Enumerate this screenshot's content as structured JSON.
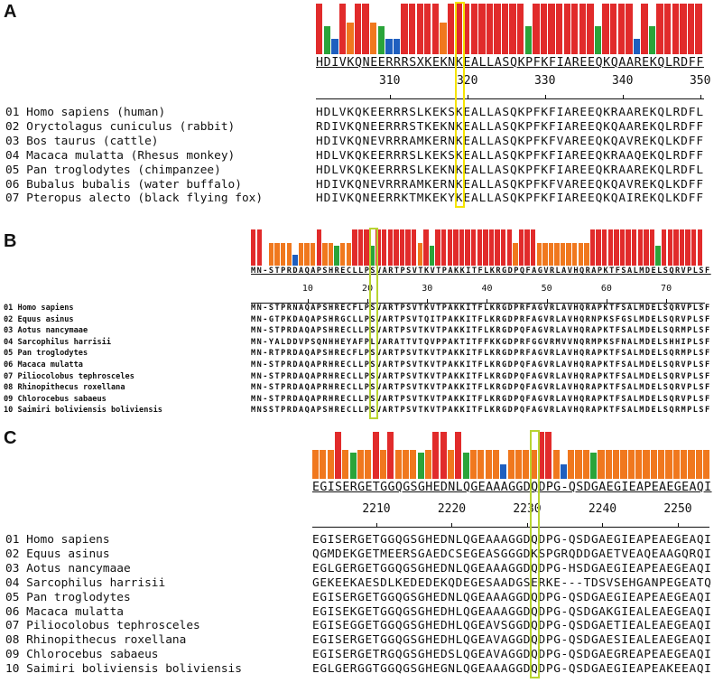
{
  "panels": [
    {
      "label": "A",
      "highlight_color": "#f5e400",
      "consensus": "HDIVKQNEERRRSXKEKNKEALLASQKPFKFIAREEQKQAAREKQLRDFF",
      "ruler_start": 301,
      "ruler_ticks": [
        "310",
        "320",
        "330",
        "340",
        "350"
      ],
      "highlight_col": 18,
      "bar_colors": "RGBRORROGBBRRRRRORRRRRRRRRRGRRRRRRRRGRRRRBRGRRRRRR",
      "species": [
        "01 Homo sapiens (human)",
        "02 Oryctolagus cuniculus (rabbit)",
        "03 Bos taurus (cattle)",
        "04 Macaca mulatta (Rhesus monkey)",
        "05 Pan troglodytes (chimpanzee)",
        "06 Bubalus bubalis (water buffalo)",
        "07 Pteropus alecto (black flying fox)"
      ],
      "sequences": [
        "HDLVKQKEERRRSLKEKSKEALLASQKPFKFIAREEQKRAAREKQLRDFL",
        "RDIVKQNEERRRSTKEKNKEALLASQKPFKFIAREEQKQAAREKQLRDFF",
        "HDIVKQNEVRRRAMKERNKEALLASQKPFKFVAREEQKQAVREKQLKDFF",
        "HDLVKQKEERRRSLKEKSKEALLASQKPFKFIAREEQKRAAQEKQLRDFF",
        "HDLVKQKEERRRSLKEKNKEALLASQKPFKFIAREEQKRAAREKQLRDFL",
        "HDIVKQNEVRRRAMKERNKEALLASQKPFKFVAREEQKQAVREKQLKDFF",
        "HDIVKQNEERRKTMKEKYKEALLASQKPFKFIAREEQKQAIREKQLKDFF"
      ]
    },
    {
      "label": "B",
      "highlight_color": "#b8d432",
      "consensus": "MN-STPRDAQAPSHRECLLPSVARTPSVTKVTPAKKITFLKRGDPQFAGVRLAVHQRAPKTFSALMDELSQRVPLSF",
      "ruler_start": 1,
      "ruler_ticks": [
        "10",
        "20",
        "30",
        "40",
        "50",
        "60",
        "70"
      ],
      "highlight_col": 20,
      "bar_colors": "RRWOOOOBOOOROOGOORRRGRRRRRRRORGRRRRRRRRRRRRRORRROOOOOOOOORRRRRRRRRRRGRRRRRRR",
      "species": [
        "01 Homo sapiens",
        "02 Equus asinus",
        "03 Aotus nancymaae",
        "04 Sarcophilus harrisii",
        "05 Pan troglodytes",
        "06 Macaca mulatta",
        "07 Piliocolobus tephrosceles",
        "08 Rhinopithecus roxellana",
        "09 Chlorocebus sabaeus",
        "10 Saimiri boliviensis boliviensis"
      ],
      "sequences": [
        "MN-STPRNAQAPSHRECFLPSVARTPSVTKVTPAKKITFLKRGDPRFAGVRLAVHQRAPKTFSALMDELSQRVPLSF",
        "MN-GTPKDAQAPSHRGCLLPSVARTPSVTQITPAKKITFLKRGDPRFAGVRLAVHQRNPKSFGSLMDELSQRVPLSF",
        "MN-STPRDAQAPSHRECLLPSVARTPSVTKVTPAKKITFLKRGDPQFAGVRLAVHQRAPKTFSALMDELSQRMPLSF",
        "MN-YALDDVPSQNHHEYAFPLVARATTVTQVPPAKTITFFKKGDPRFGGVRMVVNQRMPKSFNALMDELSHHIPLSF",
        "MN-RTPRDAQAPSHRECFLPSVARTPSVTKVTPAKKITFLKRGDPRFAGVRLAVHQRAPKTFSALMDELSQRMPLSF",
        "MN-STPRDAQAPRHRECLLPSVARTPSVTKVTPAKKITFLKRGDPQFAGVRLAVHQRAPKTFSALMDELSQRVPLSF",
        "MN-STPRDAQAPRHRECLLPSVARTPSVTKVTPAKKITFLKRGDPQFAGVRLAVHQRAPKTFSALMDELSQRVPLSF",
        "MN-STPRDAQAPRHRECLLPSVARTPSVTKVTPAKKITFLKRGDPQFAGVRLAVHQRAPKTFSALMDELSQRVPLSF",
        "MN-STPRDAQAPRHRECLLPSVARTPSVTKVTPAKKITFLKRGDPQFAGVRLAVHQRAPKTFSALMDELSQRVPLSF",
        "MNSSTPRDAQAPSHRECLLPSVARTPSVTKVTPAKKITFLKRGDPQFAGVRLAVHQRAPKTFSALMDELSQRMPLSF"
      ]
    },
    {
      "label": "C",
      "highlight_color": "#b8d432",
      "consensus": "EGISERGETGGQGSGHEDNLQGEAAAGGDQDPG-QSDGAEGIEAPEAEGEAQI",
      "ruler_start": 2202,
      "ruler_ticks": [
        "2210",
        "2220",
        "2230",
        "2240",
        "2250"
      ],
      "highlight_col": 29,
      "bar_colors": "OOOROGOOROROOOGORRORGOOOOBOOOORROBOOOGOOOOOOOOOOOOOOO",
      "species": [
        "01 Homo sapiens",
        "02 Equus asinus",
        "03 Aotus nancymaae",
        "04 Sarcophilus harrisii",
        "05 Pan troglodytes",
        "06 Macaca mulatta",
        "07 Piliocolobus tephrosceles",
        "08 Rhinopithecus roxellana",
        "09 Chlorocebus sabaeus",
        "10 Saimiri boliviensis boliviensis"
      ],
      "sequences": [
        "EGISERGETGGQGSGHEDNLQGEAAAGGDQDPG-QSDGAEGIEAPEAEGEAQI",
        "QGMDEKGETMEERSGAEDCSEGEASGGGDKSPGRQDDGAETVEAQEAAGQRQI",
        "EGLGERGETGGQGSGHEDNLQGEAAAGGDQDPG-HSDGAEGIEAPEAEGEAQI",
        "GEKEEKAESDLKEDEDEKQDEGESAADGSERKE---TDSVSEHGANPEGEATQ",
        "EGISERGETGGQGSGHEDNLQGEAAAGGDQDPG-QSDGAEGIEAPEAEGEAQI",
        "EGISEKGETGGQGSGHEDHLQGEAAAGGDQDPG-QSDGAKGIEALEAEGEAQI",
        "EGISEGGETGGQGSGHEDHLQGEAVSGGDQDPG-QSDGAETIEALEAEGEAQI",
        "EGISERGETGGQGSGHEDHLQGEAVAGGDQDPG-QSDGAESIEALEAEGEAQI",
        "EGISERGETRGQGSGHEDSLQGEAVAGGDQDPG-QSDGAEGREAPEAEGEAQI",
        "EGLGERGGTGGQGSGHEGNLQGEAAAGGDQDPG-QSDGAEGIEAPEAKEEAQI"
      ]
    }
  ]
}
